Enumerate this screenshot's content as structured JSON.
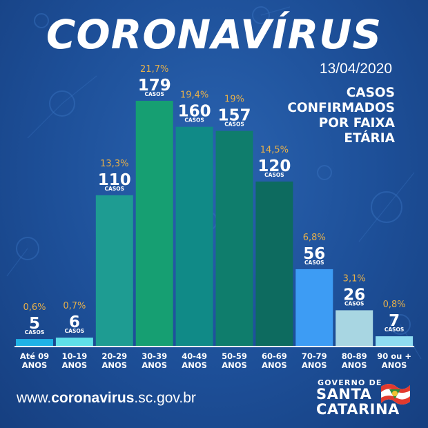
{
  "header": {
    "title": "CORONAVÍRUS",
    "date": "13/04/2020",
    "subtitle_lines": [
      "CASOS",
      "CONFIRMADOS",
      "POR FAIXA",
      "ETÁRIA"
    ]
  },
  "footer": {
    "website_prefix": "www.",
    "website_bold": "coronavirus",
    "website_suffix": ".sc.gov.br",
    "logo_top": "GOVERNO DE",
    "logo_line1": "SANTA",
    "logo_line2": "CATARINA"
  },
  "colors": {
    "background": "#1d4f98",
    "percent_text": "#e7b04a",
    "bars": [
      "#1fb2e6",
      "#5fe0e8",
      "#1e9c92",
      "#169f72",
      "#108a87",
      "#0f7d6c",
      "#0d6b5f",
      "#3d9cf4",
      "#a8d6e2",
      "#8fdcf1"
    ]
  },
  "chart_data": {
    "type": "bar",
    "categories": [
      [
        "Até 09",
        "ANOS"
      ],
      [
        "10-19",
        "ANOS"
      ],
      [
        "20-29",
        "ANOS"
      ],
      [
        "30-39",
        "ANOS"
      ],
      [
        "40-49",
        "ANOS"
      ],
      [
        "50-59",
        "ANOS"
      ],
      [
        "60-69",
        "ANOS"
      ],
      [
        "70-79",
        "ANOS"
      ],
      [
        "80-89",
        "ANOS"
      ],
      [
        "90 ou +",
        "ANOS"
      ]
    ],
    "values": [
      5,
      6,
      110,
      179,
      160,
      157,
      120,
      56,
      26,
      7
    ],
    "percent_labels": [
      "0,6%",
      "0,7%",
      "13,3%",
      "21,7%",
      "19,4%",
      "19%",
      "14,5%",
      "6,8%",
      "3,1%",
      "0,8%"
    ],
    "value_unit_label": "CASOS",
    "ylim": [
      0,
      179
    ]
  }
}
